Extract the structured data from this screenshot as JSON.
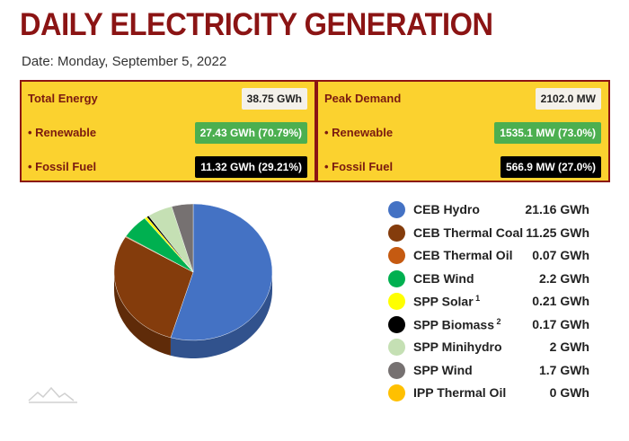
{
  "header": {
    "title": "DAILY ELECTRICITY GENERATION",
    "date": "Date: Monday, September 5, 2022"
  },
  "energy_panel": {
    "total_label": "Total Energy",
    "total_value": "38.75 GWh",
    "renewable_label": "• Renewable",
    "renewable_value": "27.43 GWh (70.79%)",
    "fossil_label": "• Fossil Fuel",
    "fossil_value": "11.32 GWh (29.21%)"
  },
  "demand_panel": {
    "total_label": "Peak Demand",
    "total_value": "2102.0 MW",
    "renewable_label": "• Renewable",
    "renewable_value": "1535.1 MW (73.0%)",
    "fossil_label": "• Fossil Fuel",
    "fossil_value": "566.9 MW (27.0%)"
  },
  "colors": {
    "title": "#8b1414",
    "panel_bg": "#fbd22f",
    "panel_border": "#8b1414",
    "renewable_badge": "#4caf50",
    "fossil_badge": "#000000"
  },
  "chart_data": {
    "type": "pie",
    "style": "3d",
    "legend_placement": "right",
    "unit": "GWh",
    "series": [
      {
        "name": "CEB Hydro",
        "value": 21.16,
        "label": "21.16 GWh",
        "sup": "",
        "color": "#4472c4"
      },
      {
        "name": "CEB Thermal Coal",
        "value": 11.25,
        "label": "11.25 GWh",
        "sup": "",
        "color": "#843c0c"
      },
      {
        "name": "CEB Thermal Oil",
        "value": 0.07,
        "label": "0.07 GWh",
        "sup": "",
        "color": "#c55a11"
      },
      {
        "name": "CEB Wind",
        "value": 2.2,
        "label": "2.2 GWh",
        "sup": "",
        "color": "#00b050"
      },
      {
        "name": "SPP Solar",
        "value": 0.21,
        "label": "0.21 GWh",
        "sup": "1",
        "color": "#ffff00"
      },
      {
        "name": "SPP Biomass",
        "value": 0.17,
        "label": "0.17 GWh",
        "sup": "2",
        "color": "#000000"
      },
      {
        "name": "SPP Minihydro",
        "value": 2,
        "label": "2 GWh",
        "sup": "",
        "color": "#c5e0b4"
      },
      {
        "name": "SPP Wind",
        "value": 1.7,
        "label": "1.7 GWh",
        "sup": "",
        "color": "#767171"
      },
      {
        "name": "IPP Thermal Oil",
        "value": 0,
        "label": "0 GWh",
        "sup": "",
        "color": "#ffc000"
      }
    ]
  }
}
